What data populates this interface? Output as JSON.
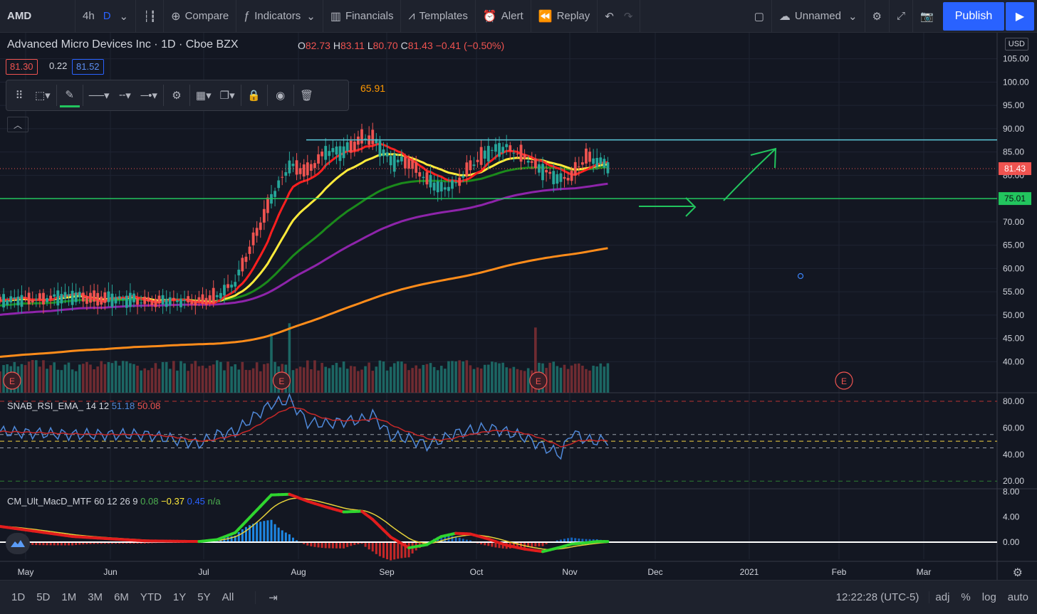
{
  "topbar": {
    "symbol": "AMD",
    "intervals": [
      "4h",
      "D"
    ],
    "compare": "Compare",
    "indicators": "Indicators",
    "financials": "Financials",
    "templates": "Templates",
    "alert": "Alert",
    "replay": "Replay",
    "layout_name": "Unnamed",
    "publish": "Publish"
  },
  "legend": {
    "title": "Advanced Micro Devices Inc · 1D · Cboe BZX",
    "o": "82.73",
    "h": "83.11",
    "l": "80.70",
    "c": "81.43",
    "chg": "−0.41 (−0.50%)",
    "bid": "81.30",
    "spread": "0.22",
    "ask": "81.52",
    "ema200": "65.91"
  },
  "rsi_legend": {
    "name": "SNAB_RSI_EMA_ 14 12",
    "v1": "51.18",
    "v2": "50.08"
  },
  "macd_legend": {
    "name": "CM_Ult_MacD_MTF 60 12 26 9",
    "v1": "0.08",
    "v2": "−0.37",
    "v3": "0.45",
    "v4": "n/a"
  },
  "bottombar": {
    "ranges": [
      "1D",
      "5D",
      "1M",
      "3M",
      "6M",
      "YTD",
      "1Y",
      "5Y",
      "All"
    ],
    "clock": "12:22:28 (UTC-5)",
    "adj": "adj",
    "pct": "%",
    "log": "log",
    "auto": "auto"
  },
  "currency": "USD",
  "colors": {
    "bg": "#131722",
    "up": "#26a69a",
    "down": "#ef5350",
    "ema_red": "#ff1f1f",
    "ema_yellow": "#ffeb3b",
    "ema_green": "#1b8a1b",
    "ema_purple": "#8e24aa",
    "ema_orange": "#ff8c1a",
    "support": "#22c55e",
    "resistance": "#5bc8d9",
    "rsi": "#4f88d8",
    "rsi_ema": "#c62828"
  },
  "chart_data": {
    "type": "candlestick",
    "x_months": [
      "May",
      "Jun",
      "Jul",
      "Aug",
      "Sep",
      "Oct",
      "Nov",
      "Dec",
      "2021",
      "Feb",
      "Mar"
    ],
    "y_price_ticks": [
      "105.00",
      "100.00",
      "95.00",
      "90.00",
      "85.00",
      "80.00",
      "75.00",
      "70.00",
      "65.00",
      "60.00",
      "55.00",
      "50.00",
      "45.00",
      "40.00"
    ],
    "y_price_range": [
      35,
      108
    ],
    "last_price_label": "81.43",
    "support_label": "75.01",
    "support_level": 75.01,
    "resistance_level": 87.6,
    "rsi_ticks": [
      "80.00",
      "60.00",
      "40.00",
      "20.00"
    ],
    "rsi_levels": [
      80,
      55,
      50,
      45,
      20
    ],
    "macd_ticks": [
      "8.00",
      "4.00",
      "0.00"
    ],
    "earnings_marker": "E",
    "price_anchors": [
      [
        0,
        53
      ],
      [
        20,
        54
      ],
      [
        40,
        53
      ],
      [
        55,
        53
      ],
      [
        60,
        54
      ],
      [
        65,
        57
      ],
      [
        70,
        66
      ],
      [
        75,
        75
      ],
      [
        80,
        82
      ],
      [
        85,
        81
      ],
      [
        90,
        85
      ],
      [
        95,
        85
      ],
      [
        100,
        88
      ],
      [
        103,
        88
      ],
      [
        108,
        83
      ],
      [
        113,
        83
      ],
      [
        118,
        79
      ],
      [
        122,
        77
      ],
      [
        126,
        78
      ],
      [
        130,
        82
      ],
      [
        135,
        85
      ],
      [
        140,
        86
      ],
      [
        145,
        84
      ],
      [
        150,
        81
      ],
      [
        155,
        79
      ],
      [
        158,
        80
      ],
      [
        162,
        84
      ],
      [
        165,
        83
      ],
      [
        168,
        82
      ]
    ],
    "rsi_anchors": [
      [
        0,
        57
      ],
      [
        20,
        55
      ],
      [
        40,
        55
      ],
      [
        55,
        48
      ],
      [
        60,
        55
      ],
      [
        65,
        57
      ],
      [
        70,
        68
      ],
      [
        75,
        78
      ],
      [
        80,
        81
      ],
      [
        85,
        64
      ],
      [
        90,
        63
      ],
      [
        95,
        65
      ],
      [
        100,
        66
      ],
      [
        103,
        70
      ],
      [
        108,
        54
      ],
      [
        113,
        52
      ],
      [
        118,
        47
      ],
      [
        122,
        51
      ],
      [
        126,
        56
      ],
      [
        130,
        58
      ],
      [
        135,
        60
      ],
      [
        140,
        57
      ],
      [
        145,
        53
      ],
      [
        150,
        46
      ],
      [
        155,
        40
      ],
      [
        158,
        57
      ],
      [
        162,
        51
      ],
      [
        165,
        50
      ],
      [
        168,
        51
      ]
    ],
    "macd_anchors": [
      [
        0,
        2.5
      ],
      [
        20,
        0.9
      ],
      [
        40,
        0.2
      ],
      [
        55,
        0.1
      ],
      [
        60,
        0.4
      ],
      [
        65,
        1.5
      ],
      [
        70,
        4.5
      ],
      [
        75,
        7.5
      ],
      [
        80,
        7.6
      ],
      [
        85,
        6.5
      ],
      [
        90,
        5.6
      ],
      [
        95,
        4.8
      ],
      [
        100,
        4.9
      ],
      [
        103,
        3.6
      ],
      [
        108,
        0.8
      ],
      [
        113,
        -0.9
      ],
      [
        118,
        -0.4
      ],
      [
        122,
        0.9
      ],
      [
        126,
        1.4
      ],
      [
        130,
        1.3
      ],
      [
        135,
        0.5
      ],
      [
        140,
        -0.5
      ],
      [
        145,
        -1.1
      ],
      [
        150,
        -1.5
      ],
      [
        155,
        -0.8
      ],
      [
        158,
        -0.3
      ],
      [
        162,
        -0.1
      ],
      [
        165,
        0.1
      ],
      [
        168,
        0.1
      ]
    ],
    "volume_spikes": [
      [
        68,
        1.0
      ],
      [
        75,
        2.2
      ],
      [
        80,
        2.4
      ],
      [
        148,
        2.7
      ]
    ],
    "earnings_days": [
      0,
      68,
      148,
      200
    ]
  }
}
